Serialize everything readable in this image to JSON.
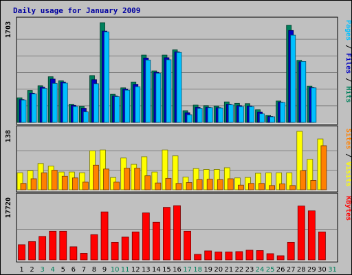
{
  "title": "Daily usage for January 2009",
  "colors": {
    "background": "#c0c0c0",
    "plot_bg": "#c0c0c0",
    "title": "#0000a0",
    "hits": "#00805c",
    "files": "#0000c0",
    "pages": "#00c0ff",
    "visits": "#ffff00",
    "sites": "#ff8000",
    "kbytes": "#ff0000",
    "weekend_label": "#00805c",
    "weekday_label": "#000000"
  },
  "chart_data": {
    "type": "bar",
    "title": "Daily usage for January 2009",
    "categories": [
      "1",
      "2",
      "3",
      "4",
      "5",
      "6",
      "7",
      "8",
      "9",
      "10",
      "11",
      "12",
      "13",
      "14",
      "15",
      "16",
      "17",
      "18",
      "19",
      "20",
      "21",
      "22",
      "23",
      "24",
      "25",
      "26",
      "27",
      "28",
      "29",
      "30",
      "31"
    ],
    "weekend_days": [
      3,
      4,
      10,
      11,
      17,
      18,
      24,
      25,
      31
    ],
    "panels": [
      {
        "name": "top",
        "max_label": "1703",
        "ymax": 1703,
        "legend": [
          {
            "text": "Pages",
            "color_key": "pages"
          },
          {
            "text": " / ",
            "color_key": "weekday_label"
          },
          {
            "text": "Files",
            "color_key": "files"
          },
          {
            "text": " / ",
            "color_key": "weekday_label"
          },
          {
            "text": "Hits",
            "color_key": "hits"
          }
        ],
        "series": [
          {
            "name": "Hits",
            "color_key": "hits",
            "values": [
              420,
              545,
              625,
              780,
              710,
              310,
              275,
              800,
              1703,
              480,
              590,
              690,
              1150,
              880,
              1150,
              1240,
              200,
              295,
              285,
              280,
              350,
              325,
              320,
              215,
              120,
              365,
              1660,
              1060,
              620,
              null,
              null
            ]
          },
          {
            "name": "Files",
            "color_key": "files",
            "values": [
              390,
              500,
              600,
              740,
              690,
              290,
              240,
              730,
              1560,
              450,
              570,
              650,
              1100,
              855,
              1105,
              1205,
              165,
              255,
              255,
              250,
              310,
              285,
              280,
              175,
              100,
              345,
              1570,
              1035,
              595,
              null,
              null
            ]
          },
          {
            "name": "Pages",
            "color_key": "pages",
            "values": [
              380,
              485,
              580,
              665,
              670,
              270,
              180,
              660,
              1545,
              440,
              550,
              610,
              1065,
              840,
              1070,
              1195,
              130,
              240,
              250,
              245,
              300,
              270,
              270,
              145,
              95,
              340,
              1490,
              1040,
              590,
              null,
              null
            ]
          }
        ]
      },
      {
        "name": "middle",
        "max_label": "138",
        "ymax": 138,
        "legend": [
          {
            "text": "Sites",
            "color_key": "sites"
          },
          {
            "text": " / ",
            "color_key": "weekday_label"
          },
          {
            "text": "Visits",
            "color_key": "visits"
          }
        ],
        "series": [
          {
            "name": "Visits",
            "color_key": "visits",
            "values": [
              40,
              45,
              62,
              56,
              42,
              42,
              40,
              92,
              94,
              29,
              75,
              60,
              78,
              42,
              94,
              80,
              30,
              50,
              48,
              48,
              52,
              28,
              29,
              39,
              40,
              40,
              40,
              138,
              72,
              120,
              null
            ]
          },
          {
            "name": "Sites",
            "color_key": "sites",
            "values": [
              15,
              26,
              40,
              46,
              32,
              28,
              18,
              58,
              49,
              18,
              51,
              51,
              33,
              16,
              27,
              15,
              17,
              24,
              25,
              24,
              26,
              11,
              15,
              15,
              10,
              14,
              10,
              45,
              22,
              104,
              null
            ]
          }
        ]
      },
      {
        "name": "bottom",
        "max_label": "17720",
        "ymax": 17720,
        "legend": [
          {
            "text": "KBytes",
            "color_key": "kbytes"
          }
        ],
        "series": [
          {
            "name": "KBytes",
            "color_key": "kbytes",
            "values": [
              4400,
              5300,
              6800,
              8300,
              8300,
              3800,
              1900,
              7300,
              13900,
              5100,
              6600,
              8100,
              13600,
              10900,
              15200,
              15700,
              8300,
              1600,
              2600,
              2300,
              2300,
              2400,
              2800,
              2700,
              1800,
              1200,
              5100,
              15600,
              14200,
              8100,
              null
            ]
          }
        ]
      }
    ],
    "grid": true
  }
}
